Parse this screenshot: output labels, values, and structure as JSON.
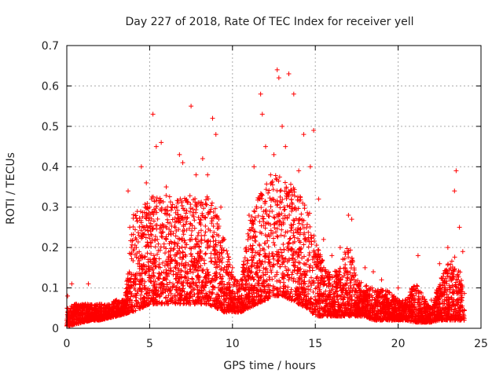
{
  "chart_data": {
    "type": "scatter",
    "title": "Day 227 of 2018, Rate Of TEC Index for receiver yell",
    "xlabel": "GPS time / hours",
    "ylabel": "ROTI / TECUs",
    "xlim": [
      0,
      25
    ],
    "ylim": [
      0,
      0.7
    ],
    "xticks": [
      "0",
      "5",
      "10",
      "15",
      "20",
      "25"
    ],
    "yticks": [
      "0",
      "0.1",
      "0.2",
      "0.3",
      "0.4",
      "0.5",
      "0.6",
      "0.7"
    ],
    "grid": true,
    "marker": "+",
    "color": "#ff0000",
    "series": [
      {
        "name": "ROTI",
        "points": [
          [
            0.05,
            0.08
          ],
          [
            0.3,
            0.11
          ],
          [
            1.3,
            0.11
          ],
          [
            2.0,
            0.06
          ],
          [
            3.0,
            0.07
          ],
          [
            3.7,
            0.34
          ],
          [
            3.8,
            0.25
          ],
          [
            4.2,
            0.2
          ],
          [
            4.5,
            0.4
          ],
          [
            4.8,
            0.36
          ],
          [
            5.0,
            0.3
          ],
          [
            5.2,
            0.53
          ],
          [
            5.4,
            0.45
          ],
          [
            5.7,
            0.46
          ],
          [
            6.0,
            0.35
          ],
          [
            6.2,
            0.28
          ],
          [
            6.8,
            0.43
          ],
          [
            7.0,
            0.41
          ],
          [
            7.5,
            0.55
          ],
          [
            7.8,
            0.38
          ],
          [
            8.2,
            0.42
          ],
          [
            8.5,
            0.38
          ],
          [
            8.8,
            0.52
          ],
          [
            9.0,
            0.48
          ],
          [
            9.3,
            0.3
          ],
          [
            9.5,
            0.22
          ],
          [
            10.0,
            0.15
          ],
          [
            10.5,
            0.12
          ],
          [
            11.0,
            0.28
          ],
          [
            11.3,
            0.4
          ],
          [
            11.7,
            0.58
          ],
          [
            11.8,
            0.53
          ],
          [
            12.0,
            0.45
          ],
          [
            12.3,
            0.38
          ],
          [
            12.5,
            0.43
          ],
          [
            12.7,
            0.64
          ],
          [
            12.8,
            0.62
          ],
          [
            13.0,
            0.5
          ],
          [
            13.2,
            0.45
          ],
          [
            13.4,
            0.63
          ],
          [
            13.7,
            0.58
          ],
          [
            14.0,
            0.39
          ],
          [
            14.3,
            0.48
          ],
          [
            14.7,
            0.4
          ],
          [
            14.9,
            0.49
          ],
          [
            15.2,
            0.32
          ],
          [
            15.5,
            0.22
          ],
          [
            16.0,
            0.18
          ],
          [
            16.5,
            0.2
          ],
          [
            17.0,
            0.28
          ],
          [
            17.2,
            0.27
          ],
          [
            18.0,
            0.15
          ],
          [
            18.5,
            0.14
          ],
          [
            19.0,
            0.12
          ],
          [
            20.0,
            0.1
          ],
          [
            21.2,
            0.18
          ],
          [
            22.0,
            0.07
          ],
          [
            22.5,
            0.16
          ],
          [
            23.0,
            0.2
          ],
          [
            23.4,
            0.34
          ],
          [
            23.5,
            0.39
          ],
          [
            23.7,
            0.25
          ],
          [
            23.9,
            0.19
          ]
        ]
      }
    ],
    "envelope": {
      "x": [
        0,
        0.5,
        1,
        1.5,
        2,
        2.5,
        3,
        3.5,
        3.8,
        4,
        4.5,
        5,
        5.5,
        6,
        6.5,
        7,
        7.5,
        8,
        8.5,
        9,
        9.5,
        10,
        10.5,
        11,
        11.5,
        12,
        12.5,
        13,
        13.5,
        14,
        14.5,
        15,
        15.5,
        16,
        16.5,
        17,
        17.5,
        18,
        18.5,
        19,
        19.5,
        20,
        20.5,
        21,
        21.5,
        22,
        22.5,
        23,
        23.5,
        24
      ],
      "low": [
        0.005,
        0.01,
        0.015,
        0.02,
        0.02,
        0.025,
        0.03,
        0.035,
        0.04,
        0.04,
        0.05,
        0.06,
        0.06,
        0.06,
        0.06,
        0.06,
        0.06,
        0.06,
        0.06,
        0.05,
        0.04,
        0.04,
        0.04,
        0.05,
        0.06,
        0.07,
        0.08,
        0.08,
        0.07,
        0.06,
        0.05,
        0.03,
        0.03,
        0.03,
        0.03,
        0.03,
        0.03,
        0.03,
        0.02,
        0.02,
        0.02,
        0.02,
        0.02,
        0.015,
        0.015,
        0.015,
        0.02,
        0.02,
        0.02,
        0.02
      ],
      "high": [
        0.05,
        0.06,
        0.06,
        0.06,
        0.06,
        0.06,
        0.07,
        0.07,
        0.2,
        0.28,
        0.3,
        0.32,
        0.34,
        0.33,
        0.32,
        0.33,
        0.33,
        0.32,
        0.33,
        0.3,
        0.22,
        0.14,
        0.12,
        0.26,
        0.32,
        0.36,
        0.38,
        0.38,
        0.36,
        0.33,
        0.32,
        0.22,
        0.16,
        0.14,
        0.15,
        0.22,
        0.12,
        0.11,
        0.1,
        0.1,
        0.09,
        0.07,
        0.07,
        0.12,
        0.08,
        0.05,
        0.12,
        0.16,
        0.18,
        0.1
      ]
    }
  }
}
